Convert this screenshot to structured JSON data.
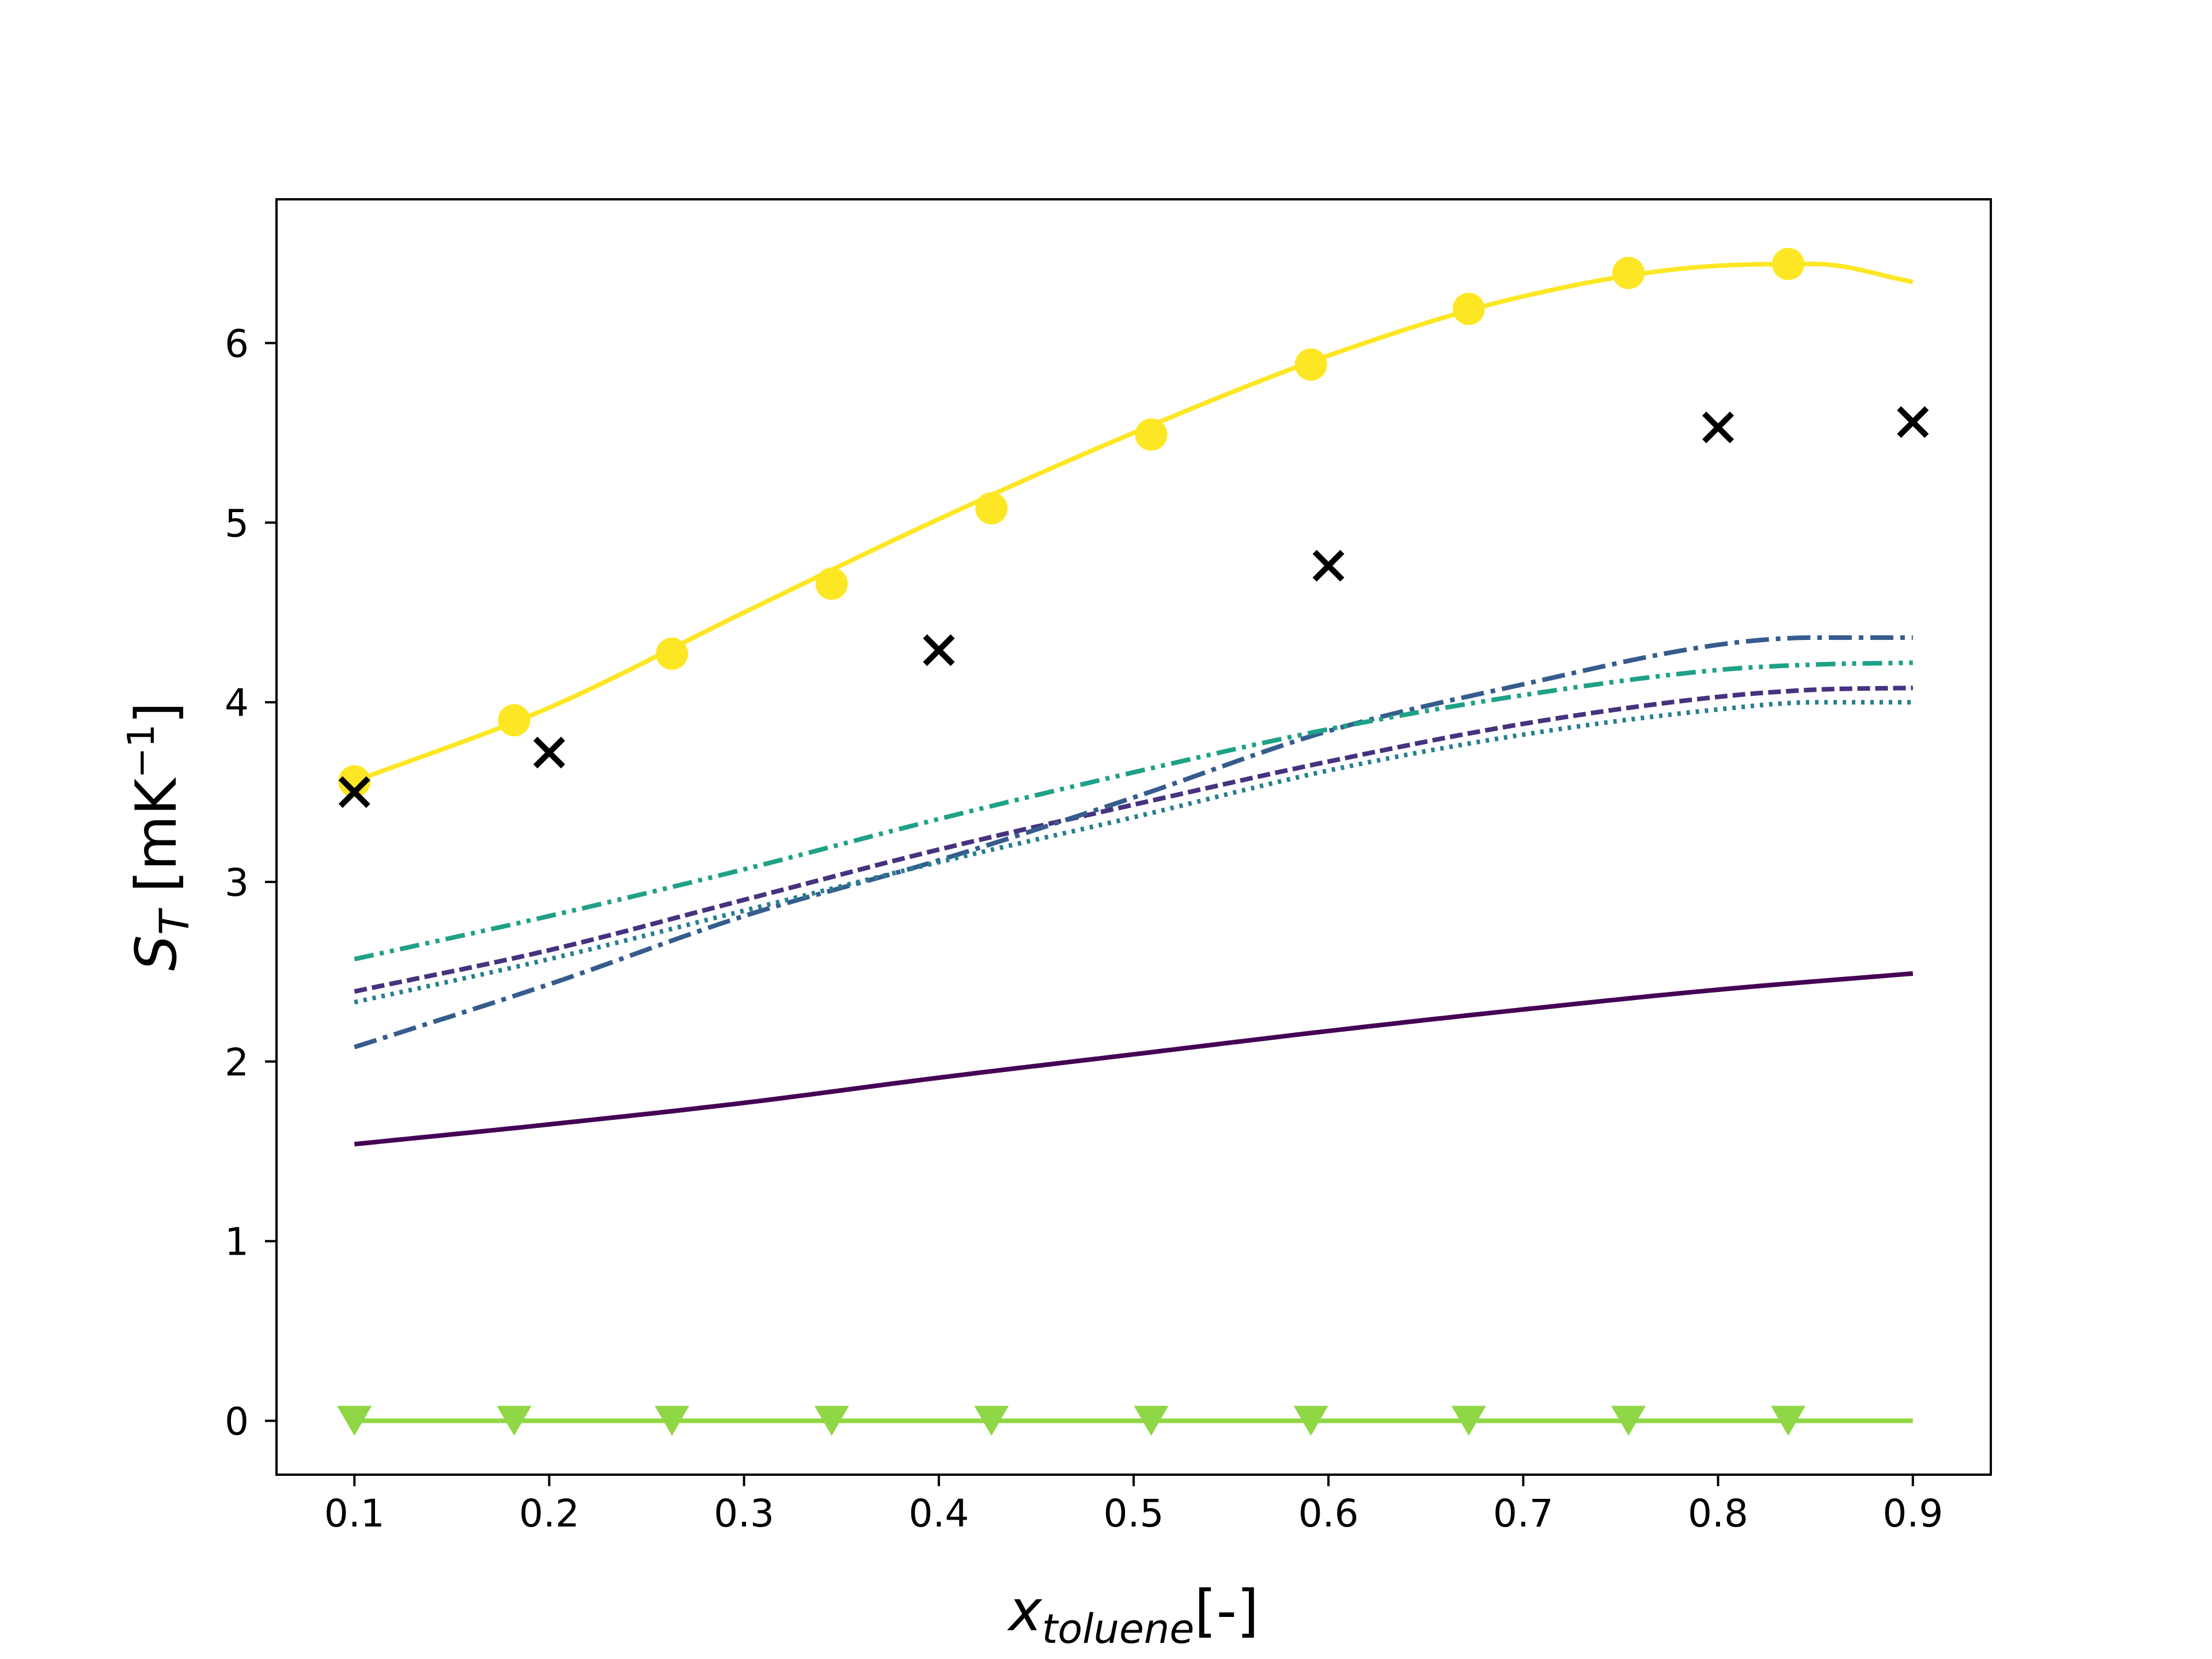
{
  "chart_data": {
    "type": "line",
    "xlabel": {
      "base": "x",
      "sub": "toluene",
      "suffix": "[-]"
    },
    "ylabel": {
      "base": "S",
      "sub": "T",
      "unit_pre": " [mK",
      "unit_sup": "−1",
      "unit_post": "]"
    },
    "xlim": [
      0.06,
      0.94
    ],
    "ylim": [
      -0.3,
      6.8
    ],
    "xticks": [
      0.1,
      0.2,
      0.3,
      0.4,
      0.5,
      0.6,
      0.7,
      0.8,
      0.9
    ],
    "xtick_labels": [
      "0.1",
      "0.2",
      "0.3",
      "0.4",
      "0.5",
      "0.6",
      "0.7",
      "0.8",
      "0.9"
    ],
    "yticks": [
      0,
      1,
      2,
      3,
      4,
      5,
      6
    ],
    "ytick_labels": [
      "0",
      "1",
      "2",
      "3",
      "4",
      "5",
      "6"
    ],
    "grid": false,
    "legend": "none",
    "series": [
      {
        "style": "solid",
        "color": "#fde725",
        "marker": "circle",
        "x": [
          0.1,
          0.2,
          0.3,
          0.4,
          0.5,
          0.6,
          0.7,
          0.8,
          0.85,
          0.9
        ],
        "y": [
          3.56,
          3.97,
          4.5,
          5.02,
          5.5,
          5.93,
          6.26,
          6.43,
          6.44,
          6.34
        ],
        "marker_x": [
          0.1,
          0.182,
          0.263,
          0.345,
          0.427,
          0.509,
          0.591,
          0.672,
          0.754,
          0.836
        ],
        "marker_y": [
          3.56,
          3.9,
          4.27,
          4.66,
          5.08,
          5.49,
          5.88,
          6.19,
          6.39,
          6.44
        ]
      },
      {
        "style": "solid",
        "color": "#440154",
        "marker": "none",
        "x": [
          0.1,
          0.2,
          0.3,
          0.4,
          0.5,
          0.6,
          0.7,
          0.8,
          0.9
        ],
        "y": [
          1.54,
          1.65,
          1.77,
          1.91,
          2.04,
          2.17,
          2.29,
          2.4,
          2.49
        ]
      },
      {
        "style": "dashed",
        "color": "#46327e",
        "marker": "none",
        "x": [
          0.1,
          0.2,
          0.3,
          0.4,
          0.5,
          0.6,
          0.7,
          0.8,
          0.85,
          0.9
        ],
        "y": [
          2.39,
          2.62,
          2.9,
          3.18,
          3.43,
          3.67,
          3.88,
          4.03,
          4.07,
          4.08
        ]
      },
      {
        "style": "dashdot",
        "color": "#365c8d",
        "marker": "none",
        "x": [
          0.1,
          0.2,
          0.3,
          0.4,
          0.5,
          0.6,
          0.7,
          0.8,
          0.85,
          0.9
        ],
        "y": [
          2.08,
          2.43,
          2.81,
          3.12,
          3.47,
          3.84,
          4.1,
          4.32,
          4.36,
          4.36
        ]
      },
      {
        "style": "dotted",
        "color": "#277f8e",
        "marker": "none",
        "x": [
          0.1,
          0.2,
          0.3,
          0.4,
          0.5,
          0.6,
          0.7,
          0.8,
          0.85,
          0.9
        ],
        "y": [
          2.33,
          2.57,
          2.84,
          3.11,
          3.36,
          3.62,
          3.82,
          3.96,
          4.0,
          4.0
        ]
      },
      {
        "style": "dashdotdot",
        "color": "#1fa187",
        "marker": "none",
        "x": [
          0.1,
          0.2,
          0.3,
          0.4,
          0.5,
          0.6,
          0.7,
          0.8,
          0.85,
          0.9
        ],
        "y": [
          2.57,
          2.81,
          3.07,
          3.35,
          3.61,
          3.85,
          4.04,
          4.18,
          4.21,
          4.22
        ]
      },
      {
        "style": "solid",
        "color": "#8fd744",
        "marker": "triangle-down",
        "x": [
          0.1,
          0.9
        ],
        "y": [
          0.0,
          0.0
        ],
        "marker_x": [
          0.1,
          0.182,
          0.263,
          0.345,
          0.427,
          0.509,
          0.591,
          0.672,
          0.754,
          0.836
        ],
        "marker_y": [
          0,
          0,
          0,
          0,
          0,
          0,
          0,
          0,
          0,
          0
        ]
      },
      {
        "style": "none",
        "color": "#000000",
        "marker": "x",
        "x": [
          0.1,
          0.2,
          0.4,
          0.6,
          0.8,
          0.9
        ],
        "y": [
          3.5,
          3.72,
          4.29,
          4.76,
          5.53,
          5.56
        ]
      }
    ]
  }
}
